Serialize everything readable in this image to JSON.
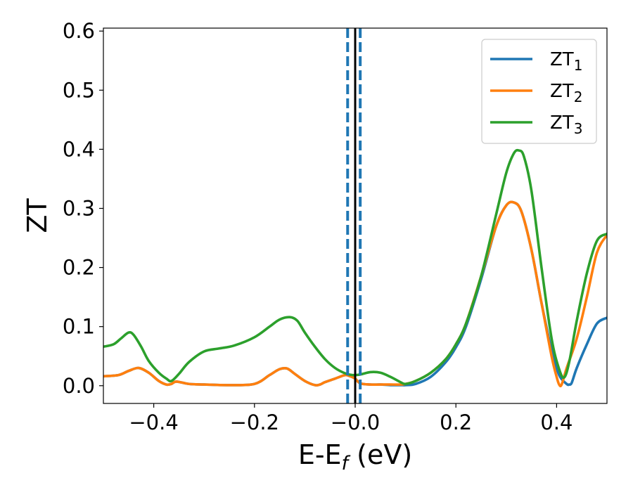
{
  "chart_data": {
    "type": "line",
    "xlabel": "E-E",
    "xlabel_sub": "f",
    "xlabel_unit": " (eV)",
    "ylabel": "ZT",
    "xlim": [
      -0.5,
      0.5
    ],
    "ylim": [
      -0.03,
      0.605
    ],
    "xticks": [
      -0.4,
      -0.2,
      0.0,
      0.2,
      0.4
    ],
    "xtick_labels": [
      "−0.4",
      "−0.2",
      "−0.0",
      "0.2",
      "0.4"
    ],
    "yticks": [
      0.0,
      0.1,
      0.2,
      0.3,
      0.4,
      0.5,
      0.6
    ],
    "ytick_labels": [
      "0.0",
      "0.1",
      "0.2",
      "0.3",
      "0.4",
      "0.5",
      "0.6"
    ],
    "grid": false,
    "legend_position": "top-right",
    "vertical_lines": [
      {
        "x": -0.015,
        "style": "dashed",
        "color": "#1f77b4"
      },
      {
        "x": 0.01,
        "style": "dashed",
        "color": "#1f77b4"
      },
      {
        "x": 0.0,
        "style": "solid",
        "color": "#000000"
      }
    ],
    "series": [
      {
        "name": "ZT",
        "name_sub": "1",
        "color": "#1f77b4",
        "x": [
          -0.5,
          -0.47,
          -0.45,
          -0.43,
          -0.41,
          -0.39,
          -0.375,
          -0.365,
          -0.355,
          -0.33,
          -0.3,
          -0.25,
          -0.2,
          -0.17,
          -0.15,
          -0.135,
          -0.12,
          -0.1,
          -0.08,
          -0.07,
          -0.06,
          -0.04,
          -0.02,
          -0.01,
          0.0,
          0.01,
          0.03,
          0.05,
          0.07,
          0.09,
          0.1,
          0.12,
          0.15,
          0.18,
          0.2,
          0.22,
          0.25,
          0.28,
          0.3,
          0.315,
          0.33,
          0.35,
          0.37,
          0.39,
          0.405,
          0.42,
          0.425,
          0.43,
          0.44,
          0.46,
          0.48,
          0.5
        ],
        "y": [
          0.016,
          0.018,
          0.025,
          0.03,
          0.022,
          0.008,
          0.002,
          0.003,
          0.007,
          0.003,
          0.002,
          0.001,
          0.003,
          0.018,
          0.028,
          0.029,
          0.02,
          0.008,
          0.001,
          0.002,
          0.006,
          0.012,
          0.018,
          0.016,
          0.012,
          0.004,
          0.002,
          0.002,
          0.001,
          0.001,
          0.001,
          0.003,
          0.015,
          0.04,
          0.065,
          0.1,
          0.18,
          0.27,
          0.305,
          0.31,
          0.295,
          0.23,
          0.14,
          0.06,
          0.018,
          0.003,
          0.002,
          0.005,
          0.03,
          0.07,
          0.105,
          0.115
        ]
      },
      {
        "name": "ZT",
        "name_sub": "2",
        "color": "#ff7f0e",
        "x": [
          -0.5,
          -0.47,
          -0.45,
          -0.43,
          -0.41,
          -0.39,
          -0.375,
          -0.365,
          -0.355,
          -0.33,
          -0.3,
          -0.25,
          -0.2,
          -0.17,
          -0.15,
          -0.135,
          -0.12,
          -0.1,
          -0.08,
          -0.07,
          -0.06,
          -0.04,
          -0.02,
          -0.01,
          0.0,
          0.01,
          0.03,
          0.05,
          0.07,
          0.09,
          0.1,
          0.12,
          0.15,
          0.18,
          0.2,
          0.22,
          0.25,
          0.28,
          0.3,
          0.315,
          0.33,
          0.35,
          0.37,
          0.39,
          0.4,
          0.405,
          0.41,
          0.42,
          0.44,
          0.46,
          0.48,
          0.5
        ],
        "y": [
          0.016,
          0.018,
          0.025,
          0.03,
          0.022,
          0.008,
          0.002,
          0.003,
          0.007,
          0.003,
          0.002,
          0.001,
          0.003,
          0.018,
          0.028,
          0.029,
          0.02,
          0.008,
          0.001,
          0.002,
          0.006,
          0.012,
          0.018,
          0.016,
          0.012,
          0.004,
          0.002,
          0.002,
          0.002,
          0.002,
          0.003,
          0.008,
          0.022,
          0.045,
          0.07,
          0.105,
          0.185,
          0.27,
          0.305,
          0.31,
          0.295,
          0.23,
          0.14,
          0.05,
          0.015,
          0.002,
          0.002,
          0.03,
          0.08,
          0.15,
          0.225,
          0.255
        ]
      },
      {
        "name": "ZT",
        "name_sub": "3",
        "color": "#2ca02c",
        "x": [
          -0.5,
          -0.48,
          -0.465,
          -0.45,
          -0.44,
          -0.425,
          -0.41,
          -0.39,
          -0.375,
          -0.365,
          -0.35,
          -0.33,
          -0.3,
          -0.27,
          -0.24,
          -0.2,
          -0.17,
          -0.15,
          -0.13,
          -0.115,
          -0.1,
          -0.08,
          -0.06,
          -0.04,
          -0.02,
          -0.005,
          0.01,
          0.03,
          0.05,
          0.07,
          0.09,
          0.1,
          0.12,
          0.15,
          0.18,
          0.2,
          0.22,
          0.25,
          0.28,
          0.3,
          0.315,
          0.325,
          0.335,
          0.35,
          0.37,
          0.39,
          0.405,
          0.415,
          0.425,
          0.44,
          0.46,
          0.48,
          0.5
        ],
        "y": [
          0.066,
          0.07,
          0.08,
          0.09,
          0.086,
          0.066,
          0.042,
          0.022,
          0.012,
          0.008,
          0.02,
          0.04,
          0.058,
          0.063,
          0.068,
          0.082,
          0.1,
          0.112,
          0.116,
          0.11,
          0.09,
          0.066,
          0.045,
          0.03,
          0.021,
          0.018,
          0.019,
          0.023,
          0.022,
          0.015,
          0.006,
          0.003,
          0.008,
          0.022,
          0.045,
          0.07,
          0.105,
          0.185,
          0.29,
          0.36,
          0.393,
          0.398,
          0.388,
          0.33,
          0.2,
          0.08,
          0.028,
          0.014,
          0.04,
          0.11,
          0.19,
          0.245,
          0.257
        ]
      }
    ]
  }
}
